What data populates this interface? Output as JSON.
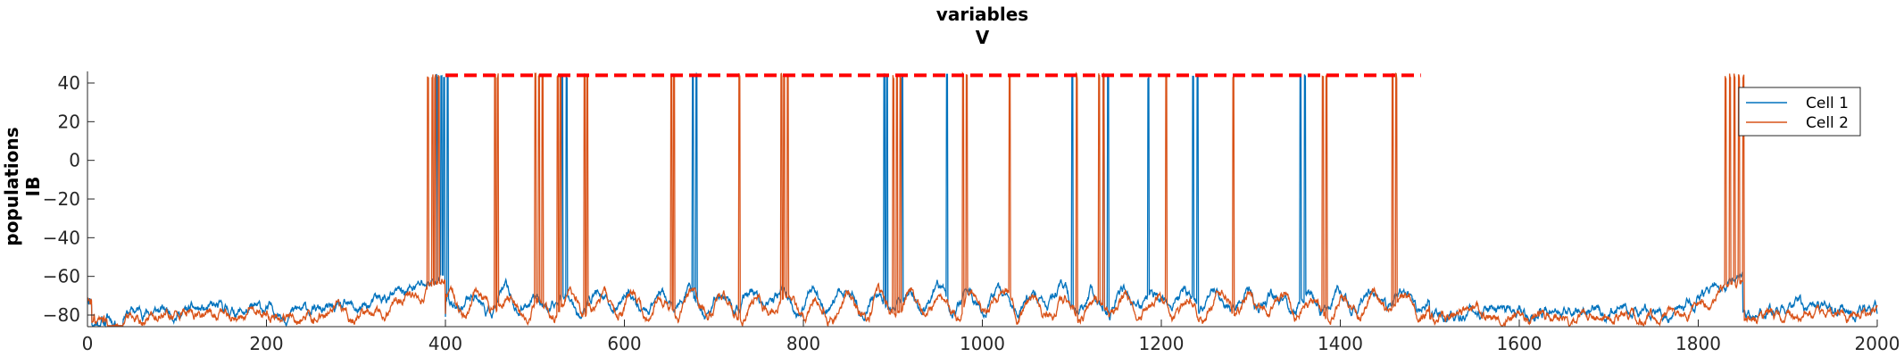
{
  "chart_data": {
    "type": "line",
    "title": [
      "variables",
      "V"
    ],
    "ylabel": [
      "populations",
      "IB"
    ],
    "xlabel": "",
    "xlim": [
      0,
      2000
    ],
    "ylim": [
      -86,
      46
    ],
    "xticks": [
      0,
      200,
      400,
      600,
      800,
      1000,
      1200,
      1400,
      1600,
      1800,
      2000
    ],
    "yticks": [
      -80,
      -60,
      -40,
      -20,
      0,
      20,
      40
    ],
    "grid": false,
    "legend_position": "top-right",
    "series": [
      {
        "name": "Cell 1",
        "color": "#0072BD",
        "baseline": -78,
        "spike_times": [
          390,
          395,
          398,
          402,
          530,
          535,
          676,
          680,
          890,
          893,
          910,
          960,
          1100,
          1135,
          1140,
          1185,
          1235,
          1240,
          1355,
          1360
        ],
        "description_values": "membrane potential trace, resting near -78, depolarized plateau near -55 around 350-400"
      },
      {
        "name": "Cell 2",
        "color": "#D95319",
        "baseline": -80,
        "spike_times": [
          380,
          385,
          388,
          392,
          455,
          458,
          500,
          504,
          508,
          525,
          528,
          555,
          558,
          652,
          655,
          728,
          775,
          778,
          782,
          900,
          904,
          908,
          978,
          982,
          1030,
          1105,
          1130,
          1135,
          1205,
          1280,
          1380,
          1384,
          1458,
          1462,
          1830,
          1835,
          1840,
          1845,
          1850
        ],
        "description_values": "membrane potential trace, resting near -80, depolarized plateau near -58 around 350-400"
      }
    ],
    "reference_line": {
      "style": "dashed",
      "color": "#FF0000",
      "y": 44,
      "x_start": 400,
      "x_end": 1490
    }
  }
}
